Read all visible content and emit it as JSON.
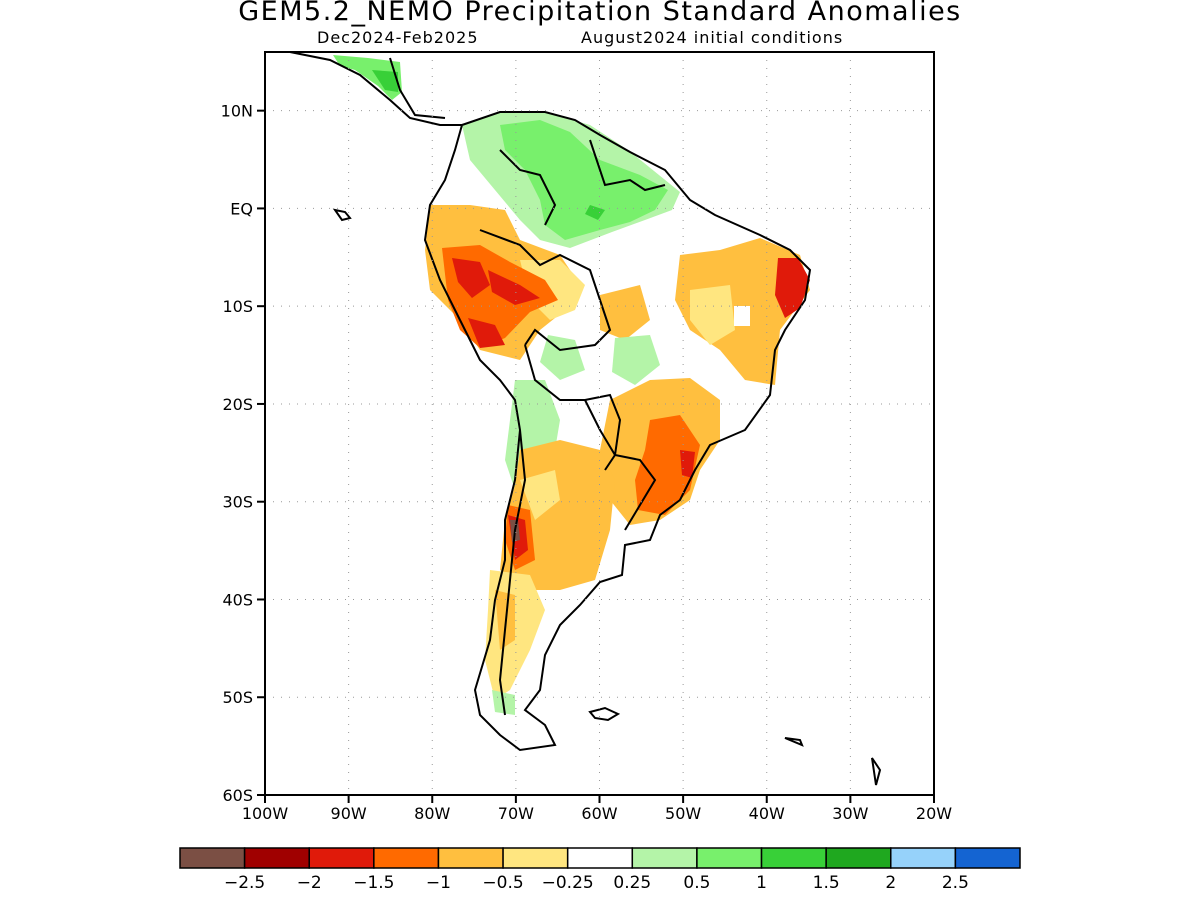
{
  "title": "GEM5.2_NEMO Precipitation Standard Anomalies",
  "subtitle_period": "Dec2024-Feb2025",
  "subtitle_init": "August2024 initial conditions",
  "axes": {
    "lat_ticks": [
      {
        "value": 10,
        "label": "10N"
      },
      {
        "value": 0,
        "label": "EQ"
      },
      {
        "value": -10,
        "label": "10S"
      },
      {
        "value": -20,
        "label": "20S"
      },
      {
        "value": -30,
        "label": "30S"
      },
      {
        "value": -40,
        "label": "40S"
      },
      {
        "value": -50,
        "label": "50S"
      },
      {
        "value": -60,
        "label": "60S"
      }
    ],
    "lon_ticks": [
      {
        "value": -100,
        "label": "100W"
      },
      {
        "value": -90,
        "label": "90W"
      },
      {
        "value": -80,
        "label": "80W"
      },
      {
        "value": -70,
        "label": "70W"
      },
      {
        "value": -60,
        "label": "60W"
      },
      {
        "value": -50,
        "label": "50W"
      },
      {
        "value": -40,
        "label": "40W"
      },
      {
        "value": -30,
        "label": "30W"
      },
      {
        "value": -20,
        "label": "20W"
      }
    ],
    "lon_range": [
      -100,
      -20
    ],
    "lat_range": [
      -60,
      16
    ],
    "grid": true
  },
  "colorbar": {
    "colors": [
      "#7b4f44",
      "#a00000",
      "#e01a0a",
      "#ff6a00",
      "#ffbf3f",
      "#ffe680",
      "#ffffff",
      "#b4f4a8",
      "#78f06c",
      "#38d038",
      "#1fa81f",
      "#96d2fa",
      "#1464d2"
    ],
    "labels": [
      "-2.5",
      "-2",
      "-1.5",
      "-1",
      "-0.5",
      "-0.25",
      "0.25",
      "0.5",
      "1",
      "1.5",
      "2",
      "2.5"
    ]
  },
  "regions": {
    "white": "#ffffff",
    "light_green": "#b4f4a8",
    "green": "#78f06c",
    "dark_green": "#38d038",
    "yellow": "#ffe680",
    "orange_light": "#ffbf3f",
    "orange": "#ff6a00",
    "red": "#e01a0a",
    "dark_red": "#a00000",
    "brown": "#7b4f44"
  }
}
